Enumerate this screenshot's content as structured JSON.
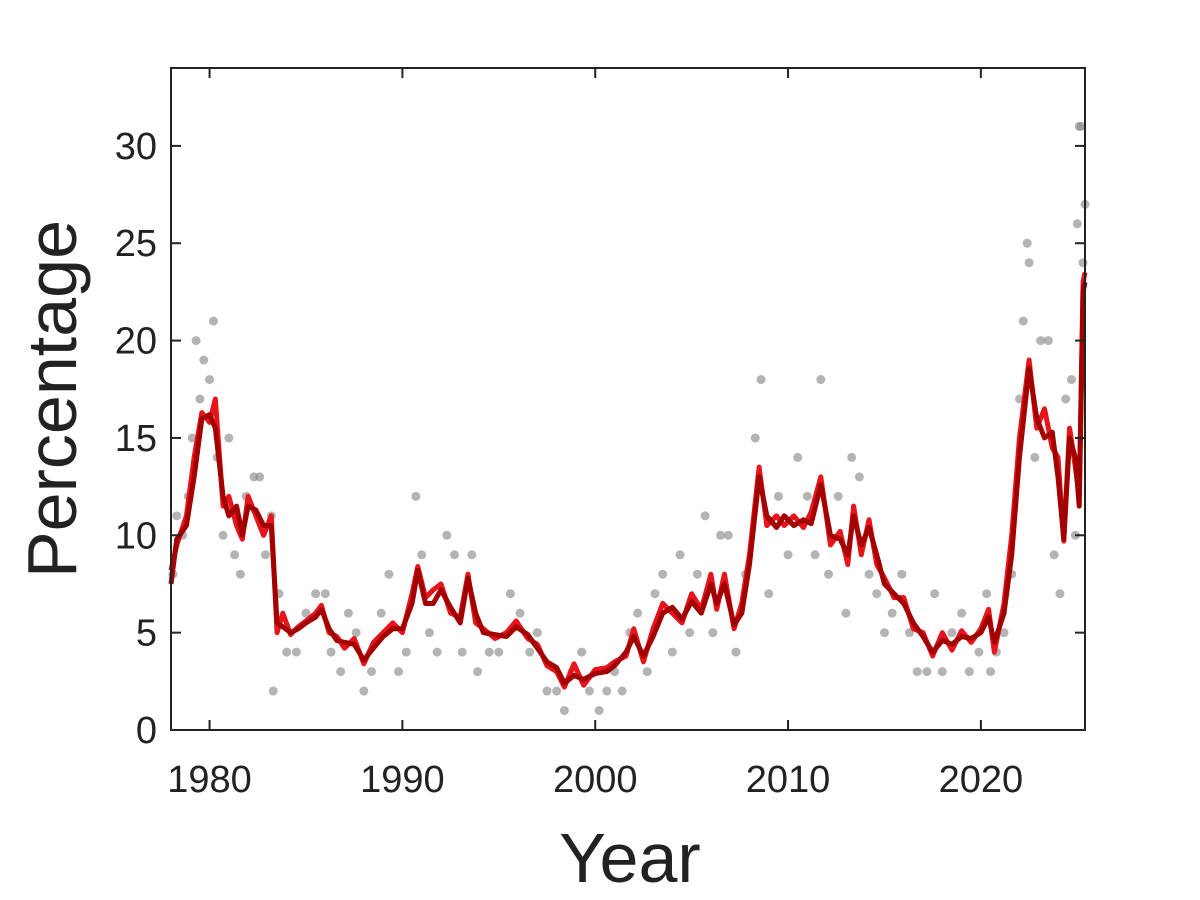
{
  "chart_data": {
    "type": "line",
    "xlabel": "Year",
    "ylabel": "Percentage",
    "xlim": [
      1978,
      2025.4
    ],
    "ylim": [
      0,
      34
    ],
    "xticks": [
      1980,
      1990,
      2000,
      2010,
      2020
    ],
    "yticks": [
      0,
      5,
      10,
      15,
      20,
      25,
      30
    ],
    "grid": false,
    "series": [
      {
        "kind": "scatter",
        "color": "#8c8c8c",
        "x": [
          1978.1,
          1978.3,
          1978.6,
          1978.9,
          1979.1,
          1979.3,
          1979.5,
          1979.7,
          1980.0,
          1980.2,
          1980.4,
          1980.7,
          1981.0,
          1981.3,
          1981.6,
          1981.9,
          1982.3,
          1982.6,
          1982.9,
          1983.2,
          1983.3,
          1983.6,
          1984.0,
          1984.5,
          1985.0,
          1985.5,
          1986.0,
          1986.3,
          1986.8,
          1987.2,
          1987.6,
          1988.0,
          1988.4,
          1988.9,
          1989.3,
          1989.8,
          1990.2,
          1990.7,
          1991.0,
          1991.4,
          1991.8,
          1992.3,
          1992.7,
          1993.1,
          1993.6,
          1993.9,
          1994.5,
          1995.0,
          1995.6,
          1996.1,
          1996.6,
          1997.0,
          1997.5,
          1998.0,
          1998.4,
          1998.8,
          1999.3,
          1999.7,
          2000.2,
          2000.6,
          2001.0,
          2001.4,
          2001.8,
          2002.2,
          2002.7,
          2003.1,
          2003.5,
          2004.0,
          2004.4,
          2004.9,
          2005.3,
          2005.7,
          2006.1,
          2006.5,
          2006.9,
          2007.3,
          2007.8,
          2008.3,
          2008.6,
          2009.0,
          2009.5,
          2010.0,
          2010.5,
          2011.0,
          2011.4,
          2011.7,
          2012.1,
          2012.6,
          2013.0,
          2013.3,
          2013.7,
          2014.2,
          2014.6,
          2015.0,
          2015.4,
          2015.9,
          2016.3,
          2016.7,
          2017.2,
          2017.6,
          2018.0,
          2018.5,
          2019.0,
          2019.4,
          2019.9,
          2020.3,
          2020.5,
          2020.8,
          2021.2,
          2021.6,
          2022.0,
          2022.2,
          2022.4,
          2022.5,
          2022.8,
          2023.1,
          2023.5,
          2023.8,
          2024.1,
          2024.4,
          2024.7,
          2024.9,
          2025.0,
          2025.1,
          2025.2,
          2025.3,
          2025.4
        ],
        "values": [
          8,
          11,
          10,
          12,
          15,
          20,
          17,
          19,
          18,
          21,
          14,
          10,
          15,
          9,
          8,
          12,
          13,
          13,
          9,
          11,
          2,
          7,
          4,
          4,
          6,
          7,
          7,
          4,
          3,
          6,
          5,
          2,
          3,
          6,
          8,
          3,
          4,
          12,
          9,
          5,
          4,
          10,
          9,
          4,
          9,
          3,
          4,
          4,
          7,
          6,
          4,
          5,
          2,
          2,
          1,
          3,
          4,
          2,
          1,
          2,
          3,
          2,
          5,
          6,
          3,
          7,
          8,
          4,
          9,
          5,
          8,
          11,
          5,
          10,
          10,
          4,
          8,
          15,
          18,
          7,
          12,
          9,
          14,
          12,
          9,
          18,
          8,
          12,
          6,
          14,
          13,
          8,
          7,
          5,
          6,
          8,
          5,
          3,
          3,
          7,
          3,
          5,
          6,
          3,
          4,
          7,
          3,
          4,
          5,
          8,
          17,
          21,
          25,
          24,
          14,
          20,
          20,
          9,
          7,
          17,
          18,
          10,
          26,
          31,
          31,
          24,
          27
        ]
      },
      {
        "kind": "line",
        "color": "#e8141c",
        "x": [
          1978.0,
          1978.3,
          1978.8,
          1979.2,
          1979.6,
          1980.0,
          1980.3,
          1980.7,
          1981.0,
          1981.4,
          1981.7,
          1982.0,
          1982.4,
          1982.8,
          1983.2,
          1983.5,
          1983.8,
          1984.2,
          1984.6,
          1985.0,
          1985.5,
          1985.8,
          1986.2,
          1986.6,
          1987.0,
          1987.5,
          1988.0,
          1988.5,
          1989.0,
          1989.5,
          1990.0,
          1990.5,
          1990.8,
          1991.2,
          1991.6,
          1992.0,
          1992.5,
          1993.0,
          1993.4,
          1993.8,
          1994.2,
          1994.8,
          1995.4,
          1995.9,
          1996.5,
          1997.0,
          1997.5,
          1998.0,
          1998.4,
          1998.9,
          1999.4,
          2000.0,
          2000.6,
          2001.0,
          2001.6,
          2002.0,
          2002.5,
          2003.0,
          2003.5,
          2004.0,
          2004.5,
          2005.0,
          2005.5,
          2006.0,
          2006.3,
          2006.7,
          2007.2,
          2007.6,
          2008.0,
          2008.5,
          2008.9,
          2009.4,
          2009.8,
          2010.3,
          2010.8,
          2011.2,
          2011.7,
          2012.2,
          2012.7,
          2013.1,
          2013.4,
          2013.8,
          2014.2,
          2014.6,
          2015.0,
          2015.5,
          2016.0,
          2016.5,
          2017.0,
          2017.5,
          2018.0,
          2018.5,
          2019.0,
          2019.5,
          2020.0,
          2020.4,
          2020.7,
          2021.2,
          2021.6,
          2022.0,
          2022.5,
          2022.9,
          2023.3,
          2023.7,
          2024.0,
          2024.3,
          2024.6,
          2024.9,
          2025.1,
          2025.3,
          2025.4
        ],
        "values": [
          8.2,
          9.5,
          11,
          14,
          16.3,
          15.8,
          17,
          11.5,
          12,
          10.5,
          9.8,
          12,
          11,
          10,
          11,
          5,
          6,
          4.9,
          5.3,
          5.6,
          6,
          6.4,
          5,
          4.8,
          4.2,
          4.7,
          3.4,
          4.5,
          5,
          5.5,
          5.0,
          7,
          8.4,
          6.8,
          7.2,
          7.5,
          6.0,
          5.8,
          8.0,
          5.5,
          5.2,
          4.7,
          5,
          5.6,
          4.7,
          4.4,
          3.3,
          3.0,
          2.2,
          3.4,
          2.3,
          3.1,
          3.2,
          3.5,
          3.8,
          5.2,
          3.5,
          5.2,
          6.5,
          6,
          5.5,
          7,
          6.2,
          8,
          6.2,
          8,
          5.2,
          6.5,
          9,
          13.5,
          10.5,
          11,
          10.5,
          11,
          10.4,
          11.2,
          13,
          9.5,
          10.2,
          8.5,
          11.5,
          9,
          10.8,
          8.5,
          7.8,
          6.8,
          6.8,
          5.2,
          5.0,
          3.8,
          5.0,
          4.1,
          5.1,
          4.5,
          5.2,
          6.2,
          4.0,
          6.5,
          10,
          15,
          19,
          15.5,
          16.5,
          14.5,
          14,
          9.7,
          15.5,
          13.5,
          12,
          23,
          23.5
        ]
      },
      {
        "kind": "line",
        "color": "#a30000",
        "x": [
          1978.0,
          1978.3,
          1978.8,
          1979.2,
          1979.6,
          1980.0,
          1980.3,
          1980.7,
          1981.0,
          1981.4,
          1981.7,
          1982.0,
          1982.4,
          1982.8,
          1983.2,
          1983.5,
          1983.8,
          1984.2,
          1984.6,
          1985.0,
          1985.5,
          1985.8,
          1986.2,
          1986.6,
          1987.0,
          1987.5,
          1988.0,
          1988.5,
          1989.0,
          1989.5,
          1990.0,
          1990.5,
          1990.8,
          1991.2,
          1991.6,
          1992.0,
          1992.5,
          1993.0,
          1993.4,
          1993.8,
          1994.2,
          1994.8,
          1995.4,
          1995.9,
          1996.5,
          1997.0,
          1997.5,
          1998.0,
          1998.4,
          1998.9,
          1999.4,
          2000.0,
          2000.6,
          2001.0,
          2001.6,
          2002.0,
          2002.5,
          2003.0,
          2003.5,
          2004.0,
          2004.5,
          2005.0,
          2005.5,
          2006.0,
          2006.3,
          2006.7,
          2007.2,
          2007.6,
          2008.0,
          2008.5,
          2008.9,
          2009.4,
          2009.8,
          2010.3,
          2010.8,
          2011.2,
          2011.7,
          2012.2,
          2012.7,
          2013.1,
          2013.4,
          2013.8,
          2014.2,
          2014.6,
          2015.0,
          2015.5,
          2016.0,
          2016.5,
          2017.0,
          2017.5,
          2018.0,
          2018.5,
          2019.0,
          2019.5,
          2020.0,
          2020.4,
          2020.7,
          2021.2,
          2021.6,
          2022.0,
          2022.5,
          2022.9,
          2023.3,
          2023.7,
          2024.0,
          2024.3,
          2024.6,
          2024.9,
          2025.1,
          2025.3,
          2025.4
        ],
        "values": [
          7.5,
          9.8,
          10.5,
          13,
          16,
          16.2,
          15.5,
          12,
          11,
          11.5,
          10,
          11.5,
          11.3,
          10.5,
          10.5,
          5.5,
          5.3,
          5,
          5.2,
          5.5,
          5.8,
          6.2,
          5.2,
          4.6,
          4.5,
          4.4,
          3.6,
          4.2,
          4.8,
          5.2,
          5.2,
          6.5,
          8.2,
          6.5,
          6.5,
          7.2,
          6.3,
          5.5,
          7.8,
          6.0,
          5.0,
          4.9,
          4.8,
          5.3,
          4.9,
          4.2,
          3.5,
          3.2,
          2.4,
          2.8,
          2.6,
          2.9,
          3.0,
          3.3,
          4.0,
          4.8,
          3.8,
          4.8,
          6.0,
          6.3,
          5.7,
          6.6,
          6.0,
          7.5,
          6.5,
          7.5,
          5.4,
          6.0,
          8.5,
          13.0,
          11.0,
          10.4,
          11.0,
          10.5,
          10.8,
          10.6,
          12.6,
          10.0,
          9.8,
          9.0,
          11.0,
          9.5,
          10.4,
          9.0,
          7.5,
          7.0,
          6.5,
          5.5,
          4.8,
          4.0,
          4.6,
          4.4,
          4.8,
          4.7,
          5.0,
          5.8,
          4.5,
          6,
          9,
          14,
          18.6,
          16,
          15,
          15.3,
          13,
          9.8,
          15,
          14.0,
          11.5,
          22.5,
          23
        ]
      }
    ]
  }
}
